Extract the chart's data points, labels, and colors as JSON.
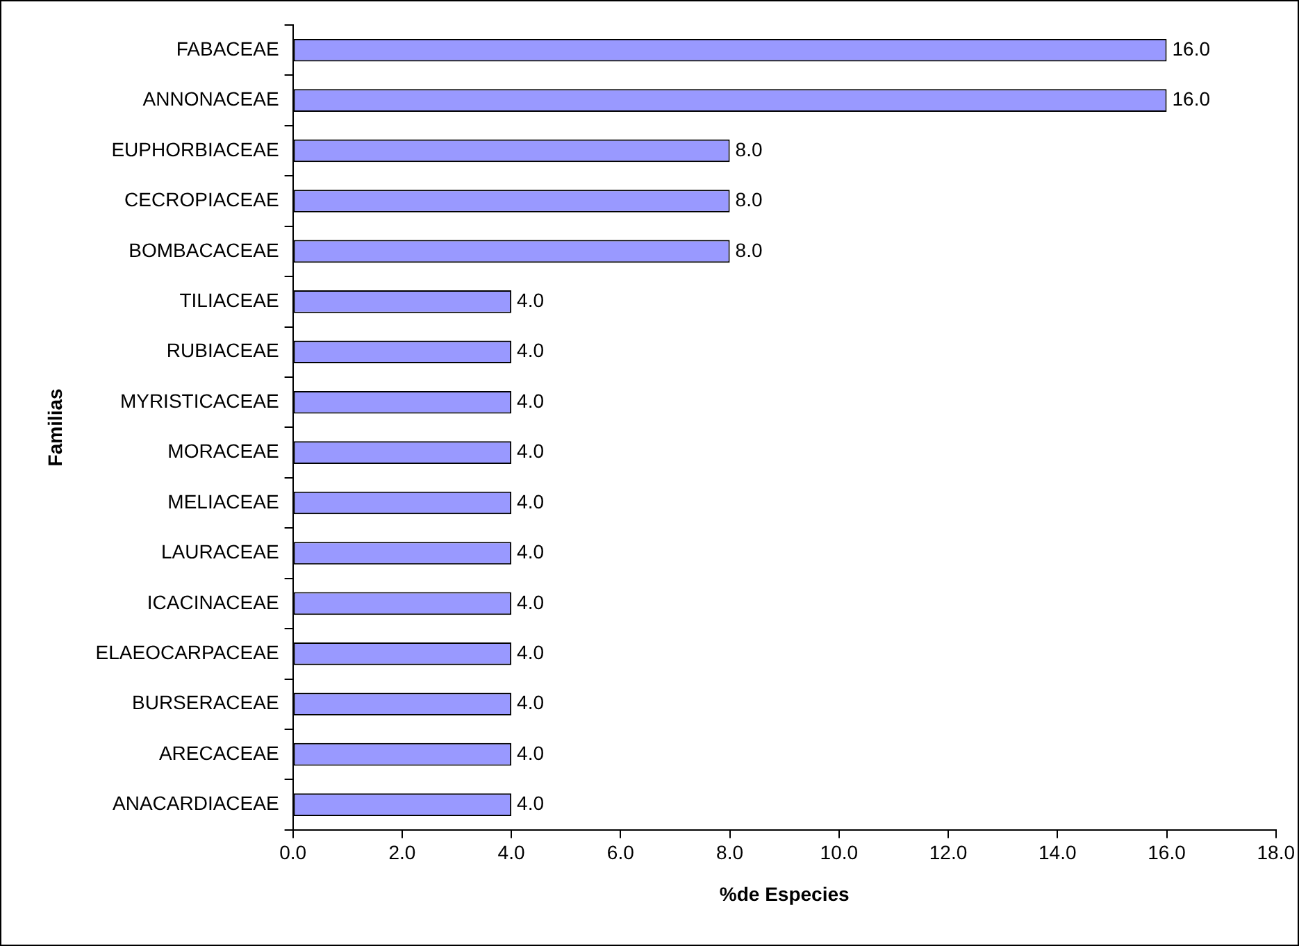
{
  "chart_data": {
    "type": "bar",
    "orientation": "horizontal",
    "xlabel": "%de Especies",
    "ylabel": "Familias",
    "categories": [
      "FABACEAE",
      "ANNONACEAE",
      "EUPHORBIACEAE",
      "CECROPIACEAE",
      "BOMBACACEAE",
      "TILIACEAE",
      "RUBIACEAE",
      "MYRISTICACEAE",
      "MORACEAE",
      "MELIACEAE",
      "LAURACEAE",
      "ICACINACEAE",
      "ELAEOCARPACEAE",
      "BURSERACEAE",
      "ARECACEAE",
      "ANACARDIACEAE"
    ],
    "values": [
      16,
      16,
      8,
      8,
      8,
      4,
      4,
      4,
      4,
      4,
      4,
      4,
      4,
      4,
      4,
      4
    ],
    "value_labels": [
      "16.0",
      "16.0",
      "8.0",
      "8.0",
      "8.0",
      "4.0",
      "4.0",
      "4.0",
      "4.0",
      "4.0",
      "4.0",
      "4.0",
      "4.0",
      "4.0",
      "4.0",
      "4.0"
    ],
    "color": "#9999ff",
    "xlim": [
      0,
      18
    ],
    "xticks": [
      {
        "value": 0,
        "label": "0.0"
      },
      {
        "value": 2,
        "label": "2.0"
      },
      {
        "value": 4,
        "label": "4.0"
      },
      {
        "value": 6,
        "label": "6.0"
      },
      {
        "value": 8,
        "label": "8.0"
      },
      {
        "value": 10,
        "label": "10.0"
      },
      {
        "value": 12,
        "label": "12.0"
      },
      {
        "value": 14,
        "label": "14.0"
      },
      {
        "value": 16,
        "label": "16.0"
      },
      {
        "value": 18,
        "label": "18.0"
      }
    ],
    "grid": false,
    "legend": false
  }
}
